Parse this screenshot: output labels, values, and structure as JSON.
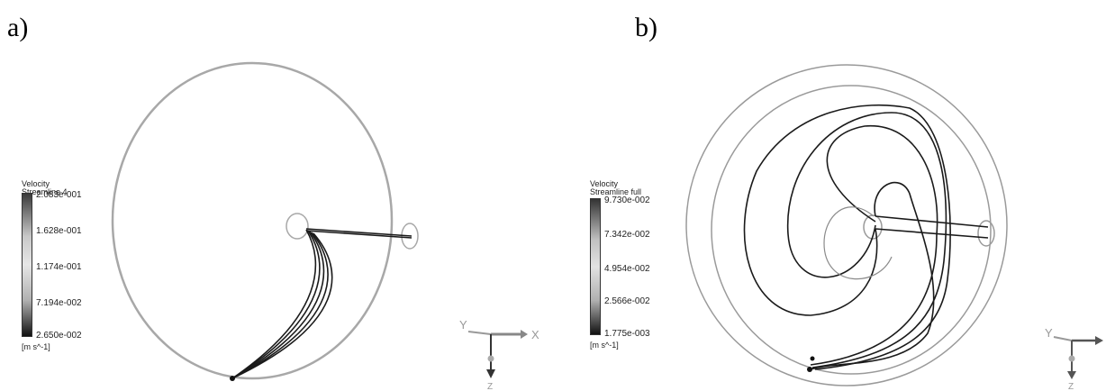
{
  "panels": [
    {
      "id": "a",
      "label": "a)",
      "legend": {
        "title_line1": "Velocity",
        "title_line2": "Streamline 4",
        "ticks": [
          "2.083e-001",
          "1.628e-001",
          "1.174e-001",
          "7.194e-002",
          "2.650e-002"
        ],
        "unit": "[m s^-1]"
      },
      "triad": {
        "left_axis": "Y",
        "right_axis": "X",
        "down_axis": "Z"
      }
    },
    {
      "id": "b",
      "label": "b)",
      "legend": {
        "title_line1": "Velocity",
        "title_line2": "Streamline full",
        "ticks": [
          "9.730e-002",
          "7.342e-002",
          "4.954e-002",
          "2.566e-002",
          "1.775e-003"
        ],
        "unit": "[m s^-1]"
      },
      "triad": {
        "left_axis": "Y",
        "right_axis": "",
        "down_axis": "Z"
      }
    }
  ],
  "colors": {
    "outline": "#9a9a9a",
    "streamline": "#1a1a1a",
    "background": "#ffffff"
  }
}
